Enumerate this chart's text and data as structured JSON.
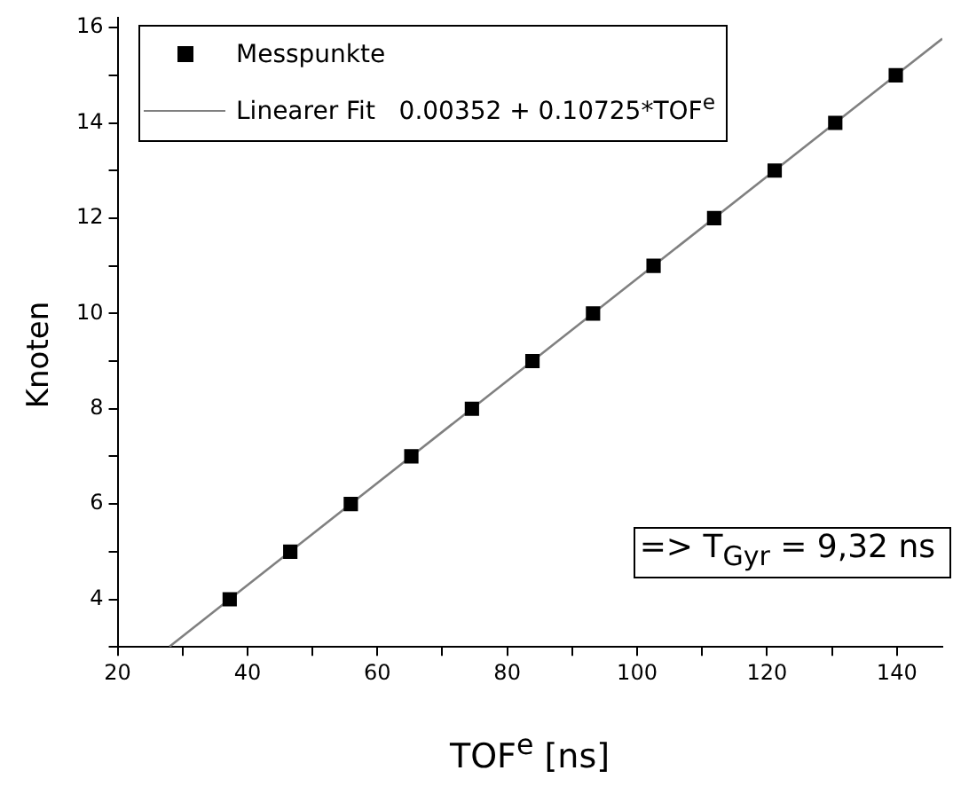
{
  "chart_data": {
    "type": "scatter",
    "xlabel": "TOF$^{e}$ [ns]",
    "ylabel": "Knoten",
    "x": [
      37.26,
      46.59,
      55.91,
      65.23,
      74.56,
      83.88,
      93.21,
      102.53,
      111.86,
      121.18,
      130.51,
      139.83
    ],
    "series": [
      {
        "name": "Messpunkte",
        "color": "#000000",
        "marker": "square",
        "values": [
          4,
          5,
          6,
          7,
          8,
          9,
          10,
          11,
          12,
          13,
          14,
          15
        ]
      },
      {
        "name": "Linearer Fit   0.00352 + 0.10725*TOF$^{e}$",
        "type": "line",
        "color": "#808080",
        "marker": "none",
        "x": [
          28,
          147
        ],
        "values": [
          3.01,
          15.77
        ]
      }
    ],
    "xlim": [
      20,
      147
    ],
    "xticks": [
      20,
      {
        "value": 30,
        "label": null
      },
      40,
      {
        "value": 50,
        "label": null
      },
      60,
      {
        "value": 70,
        "label": null
      },
      80,
      {
        "value": 90,
        "label": null
      },
      100,
      {
        "value": 110,
        "label": null
      },
      120,
      {
        "value": 130,
        "label": null
      },
      140
    ],
    "ylim": [
      3,
      16.2
    ],
    "yticks": [
      {
        "value": 3,
        "label": null
      },
      4,
      {
        "value": 5,
        "label": null
      },
      6,
      {
        "value": 7,
        "label": null
      },
      8,
      {
        "value": 9,
        "label": null
      },
      10,
      {
        "value": 11,
        "label": null
      },
      12,
      {
        "value": 13,
        "label": null
      },
      14,
      {
        "value": 15,
        "label": null
      },
      16
    ],
    "grid": false,
    "legend": "top left",
    "annotations": [
      "=> T$_{Gyr}$ = 9,32 ns"
    ]
  }
}
